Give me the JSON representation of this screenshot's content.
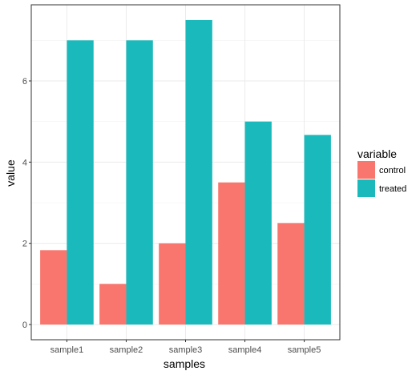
{
  "chart_data": {
    "type": "bar",
    "categories": [
      "sample1",
      "sample2",
      "sample3",
      "sample4",
      "sample5"
    ],
    "series": [
      {
        "name": "control",
        "values": [
          1.83,
          1.0,
          2.0,
          3.5,
          2.5
        ],
        "color": "#F8766D"
      },
      {
        "name": "treated",
        "values": [
          7.0,
          7.0,
          7.5,
          5.0,
          4.67
        ],
        "color": "#19B9BC"
      }
    ],
    "yticks": [
      0,
      2,
      4,
      6
    ],
    "ylim": [
      -0.375,
      7.875
    ],
    "grid": true,
    "legend_position": "right",
    "legend_title": "variable",
    "xlabel": "samples",
    "ylabel": "value"
  }
}
